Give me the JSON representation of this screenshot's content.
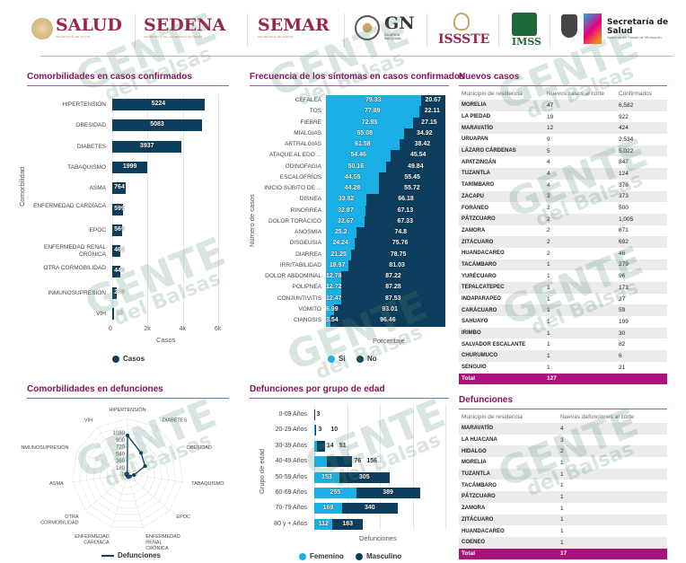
{
  "header": {
    "logos": [
      {
        "name": "SALUD",
        "sub": "SECRETARÍA DE SALUD"
      },
      {
        "name": "SEDENA",
        "sub": "SECRETARÍA DE LA DEFENSA NACIONAL"
      },
      {
        "name": "SEMAR",
        "sub": "SECRETARÍA DE MARINA"
      },
      {
        "name": "GN",
        "sub": "GUARDIA NACIONAL"
      },
      {
        "name": "ISSSTE"
      },
      {
        "name": "IMSS"
      },
      {
        "name": "Secretaría de Salud",
        "sub": "Gobierno del Estado de Michoacán"
      }
    ]
  },
  "watermark": {
    "line1": "GENTE",
    "line2": "del Balsas"
  },
  "colors": {
    "accent": "#a8127a",
    "dark": "#0d3d5c",
    "light": "#1ab0e6"
  },
  "chart_data": [
    {
      "id": "comorbidities_cases",
      "type": "bar",
      "title": "Comorbilidades en casos confirmados",
      "categories": [
        "HIPERTENSIÓN",
        "OBESIDAD",
        "DIABETES",
        "TABAQUISMO",
        "ASMA",
        "ENFERMEDAD CARDÍACA",
        "EPOC",
        "ENFERMEDAD RENAL CRÓNICA",
        "OTRA CORMOBILIDAD",
        "INMUNOSUPRESIÓN",
        "VIH"
      ],
      "values": [
        5224,
        5083,
        3937,
        1999,
        764,
        599,
        569,
        468,
        440,
        259,
        36
      ],
      "xlabel": "Casos",
      "ylabel": "Comorbilidad",
      "xlim": [
        0,
        6000
      ],
      "xticks": [
        "0",
        "2k",
        "4k",
        "6k"
      ],
      "legend": "Casos"
    },
    {
      "id": "symptoms",
      "type": "bar",
      "stacked": true,
      "title": "Frecuencia de los síntomas en casos confirmados",
      "categories": [
        "CEFALEA",
        "TOS",
        "FIEBRE",
        "MIALGIAS",
        "ARTRALGIAS",
        "ATAQUE AL EDO ...",
        "ODINOFAGIA",
        "ESCALOFRÍOS",
        "INICIO SÚBITO DE ...",
        "DISNEA",
        "RINORREA",
        "DOLOR TORÁCICO",
        "ANOSMIA",
        "DISGEUSIA",
        "DIARREA",
        "IRRITABILIDAD",
        "DOLOR ABDOMINAL",
        "POLIPNEA",
        "CONJUNTIVITIS",
        "VOMITO",
        "CIANOSIS"
      ],
      "series": [
        {
          "name": "Si",
          "values": [
            79.33,
            77.89,
            72.85,
            65.08,
            61.58,
            54.46,
            50.16,
            44.55,
            44.28,
            33.82,
            32.87,
            32.67,
            25.2,
            24.24,
            21.25,
            18.97,
            12.78,
            12.72,
            12.47,
            6.99,
            3.54
          ]
        },
        {
          "name": "No",
          "values": [
            20.67,
            22.11,
            27.15,
            34.92,
            38.42,
            45.54,
            49.84,
            55.45,
            55.72,
            66.18,
            67.13,
            67.33,
            74.8,
            75.76,
            78.75,
            81.03,
            87.22,
            87.28,
            87.53,
            93.01,
            96.46
          ]
        }
      ],
      "xlabel": "Porcentaje",
      "ylabel": "Número de casos",
      "xlim": [
        0,
        100
      ]
    },
    {
      "id": "comorbidities_deaths",
      "type": "radar",
      "title": "Comorbilidades en defunciones",
      "categories": [
        "HIPERTENSIÓN",
        "DIABETES",
        "OBESIDAD",
        "TABAQUISMO",
        "EPOC",
        "ENFERMEDAD RENAL CRÓNICA",
        "ENFERMEDAD CARDÍACA",
        "OTRA CORMOBILIDAD",
        "ASMA",
        "NMUNOSUPRESIÓN",
        "VIH"
      ],
      "values": [
        1000,
        650,
        500,
        170,
        90,
        80,
        40,
        30,
        25,
        30,
        10
      ],
      "rticks": [
        "0",
        "180",
        "360",
        "540",
        "720",
        "900",
        "1080"
      ],
      "rlim": [
        0,
        1440
      ],
      "legend": "Defunciones"
    },
    {
      "id": "deaths_by_age",
      "type": "bar",
      "stacked": true,
      "title": "Defunciones por grupo de edad",
      "categories": [
        "0-09 Años",
        "20-29 Años",
        "30-39 Años",
        "40-49 Años",
        "50-59 Años",
        "60-69 Años",
        "70-79 Años",
        "80 y + Años"
      ],
      "series": [
        {
          "name": "Femenino",
          "values": [
            0,
            3,
            14,
            76,
            153,
            255,
            169,
            112
          ]
        },
        {
          "name": "Masculino",
          "values": [
            3,
            10,
            51,
            156,
            305,
            389,
            340,
            183
          ]
        }
      ],
      "xlabel": "Defunciones",
      "ylabel": "Grupo de edad",
      "xlim": [
        0,
        800
      ]
    }
  ],
  "new_cases": {
    "title": "Nuevos casos",
    "headers": [
      "Municipio de residencia",
      "Nuevos casos al corte",
      "Confirmados"
    ],
    "rows": [
      [
        "MORELIA",
        "47",
        "6,582"
      ],
      [
        "LA PIEDAD",
        "19",
        "922"
      ],
      [
        "MARAVATÍO",
        "12",
        "424"
      ],
      [
        "URUAPAN",
        "9",
        "2,534"
      ],
      [
        "LÁZARO CÁRDENAS",
        "5",
        "5,022"
      ],
      [
        "APATZINGÁN",
        "4",
        "847"
      ],
      [
        "TUZANTLA",
        "4",
        "124"
      ],
      [
        "TARÍMBARO",
        "4",
        "376"
      ],
      [
        "ZACAPU",
        "3",
        "373"
      ],
      [
        "FORÁNEO",
        "2",
        "500"
      ],
      [
        "PÁTZCUARO",
        "2",
        "1,005"
      ],
      [
        "ZAMORA",
        "2",
        "871"
      ],
      [
        "ZITÁCUARO",
        "2",
        "692"
      ],
      [
        "HUANDACAREO",
        "2",
        "46"
      ],
      [
        "TACÁMBARO",
        "1",
        "279"
      ],
      [
        "YURÉCUARO",
        "1",
        "96"
      ],
      [
        "TEPALCATEPEC",
        "1",
        "171"
      ],
      [
        "INDAPARAPEO",
        "1",
        "27"
      ],
      [
        "CARÁCUARO",
        "1",
        "59"
      ],
      [
        "SAHUAYO",
        "1",
        "199"
      ],
      [
        "IRIMBO",
        "1",
        "30"
      ],
      [
        "SALVADOR ESCALANTE",
        "1",
        "82"
      ],
      [
        "CHURUMUCO",
        "1",
        "6"
      ],
      [
        "SENGUIO",
        "1",
        "21"
      ]
    ],
    "total": [
      "Total",
      "127",
      ""
    ]
  },
  "deaths": {
    "title": "Defunciones",
    "headers": [
      "Municipio de residencia",
      "Nuevas defunciones al corte"
    ],
    "rows": [
      [
        "MARAVATÍO",
        "4"
      ],
      [
        "LA HUACANA",
        "3"
      ],
      [
        "HIDALGO",
        "2"
      ],
      [
        "MORELIA",
        "1"
      ],
      [
        "TUZANTLA",
        "1"
      ],
      [
        "TACÁMBARO",
        "1"
      ],
      [
        "PÁTZCUARO",
        "1"
      ],
      [
        "ZAMORA",
        "1"
      ],
      [
        "ZITÁCUARO",
        "1"
      ],
      [
        "HUANDACAREO",
        "1"
      ],
      [
        "COENEO",
        "1"
      ]
    ],
    "total": [
      "Total",
      "17"
    ]
  }
}
